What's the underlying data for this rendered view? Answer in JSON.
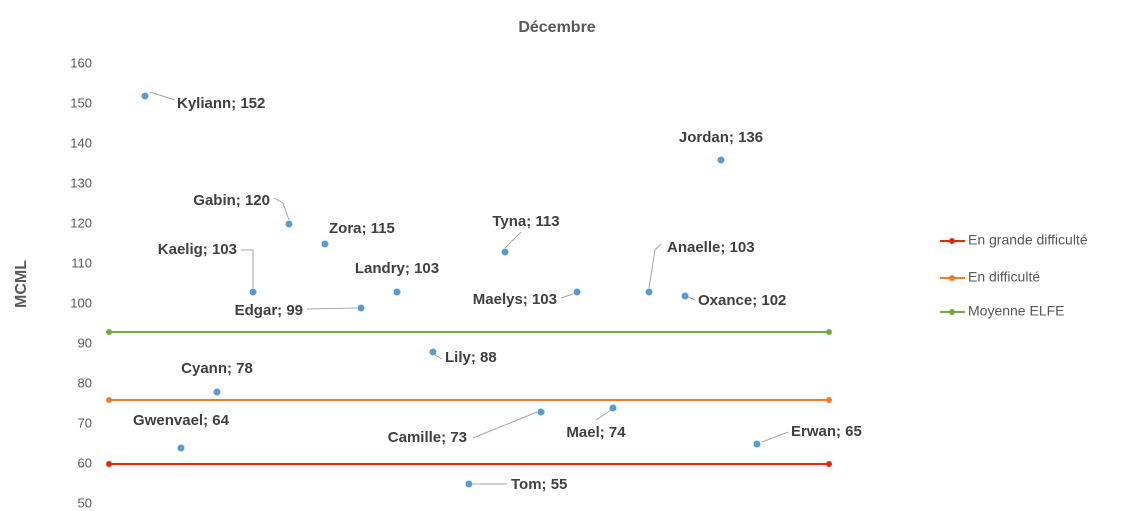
{
  "chart_data": {
    "type": "scatter",
    "title": "Décembre",
    "y_label": "MCML",
    "xlim": [
      0,
      20
    ],
    "ylim": [
      50,
      160
    ],
    "yticks": [
      50,
      60,
      70,
      80,
      90,
      100,
      110,
      120,
      130,
      140,
      150,
      160
    ],
    "grid": false,
    "legend": "right",
    "points": {
      "color": "#5b9bd5",
      "x": [
        1,
        2,
        3,
        4,
        5,
        6,
        7,
        8,
        9,
        10,
        11,
        12,
        13,
        14,
        15,
        16,
        17,
        18
      ],
      "values": [
        152,
        64,
        78,
        103,
        120,
        115,
        99,
        103,
        88,
        55,
        113,
        73,
        103,
        74,
        103,
        102,
        136,
        65
      ],
      "value_labels": [
        "Kyliann; 152",
        "Gwenvael; 64",
        "Cyann; 78",
        "Kaelig; 103",
        "Gabin; 120",
        "Zora; 115",
        "Edgar; 99",
        "Landry; 103",
        "Lily; 88",
        "Tom; 55",
        "Tyna; 113",
        "Camille; 73",
        "Maelys; 103",
        "Mael; 74",
        "Anaelle; 103",
        "Oxance; 102",
        "Jordan; 136",
        "Erwan; 65"
      ]
    },
    "series": [
      {
        "name": "En grande difficulté",
        "color": "#e8260f",
        "x": [
          0,
          20
        ],
        "values": [
          60,
          60
        ]
      },
      {
        "name": "En difficulté",
        "color": "#ee7d31",
        "x": [
          0,
          20
        ],
        "values": [
          76,
          76
        ]
      },
      {
        "name": "Moyenne ELFE",
        "color": "#70ad47",
        "x": [
          0,
          20
        ],
        "values": [
          93,
          93
        ]
      }
    ]
  }
}
